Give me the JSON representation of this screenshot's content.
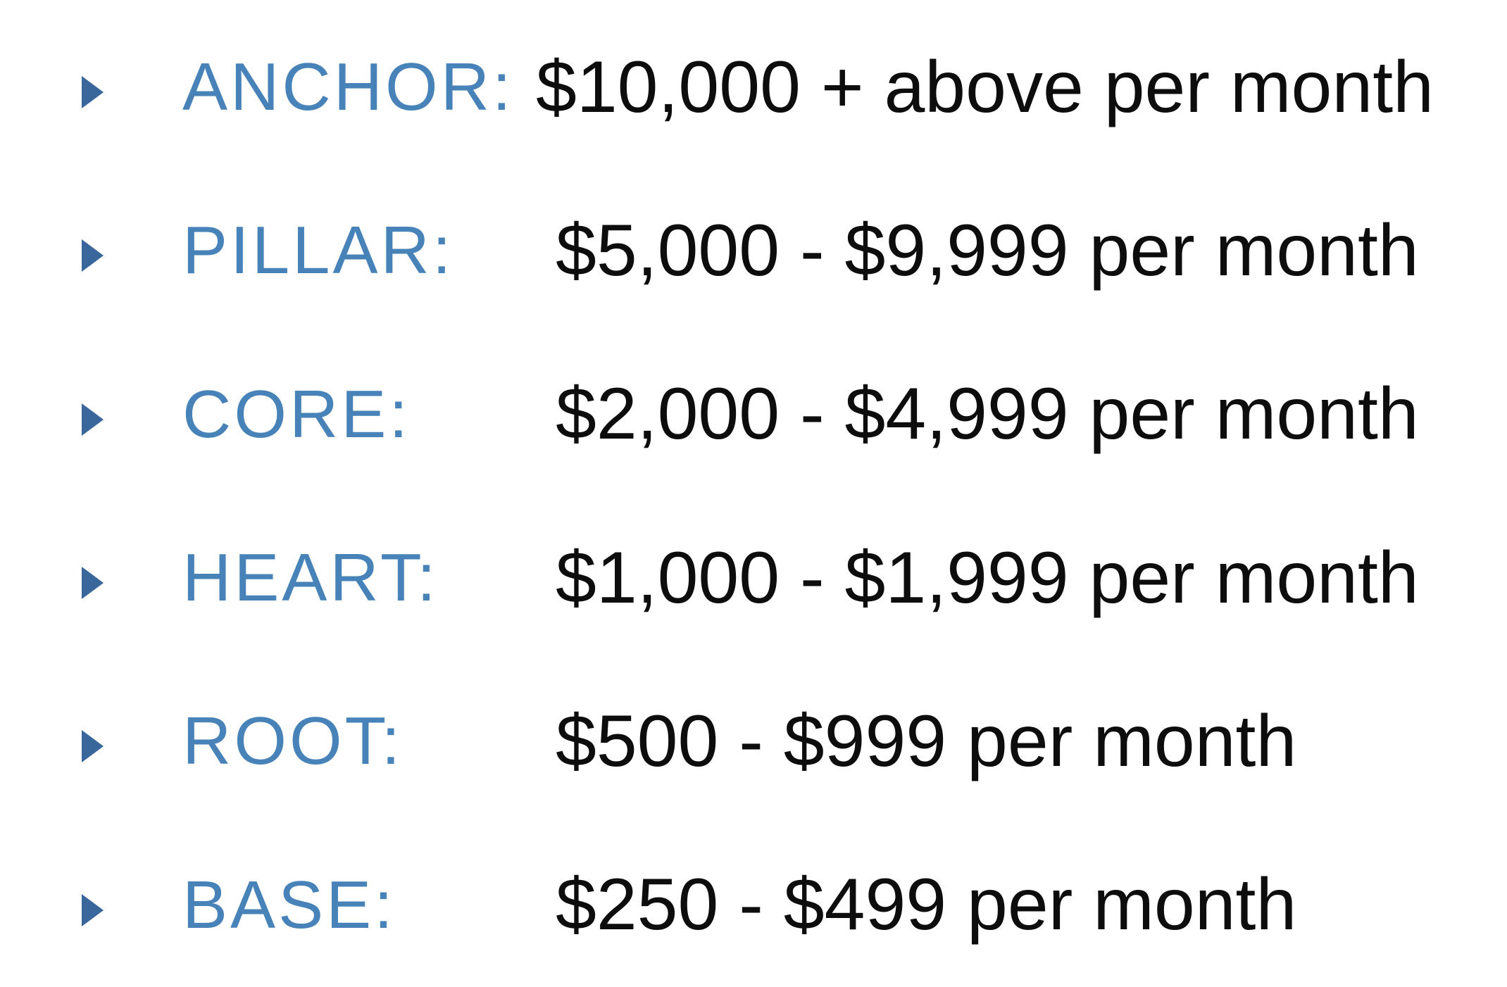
{
  "colors": {
    "label-blue": "#4783b8",
    "bullet-blue": "#3a679b",
    "value-black": "#0d0d0d",
    "background": "#ffffff"
  },
  "icons": {
    "bullet": "right-pointing-triangle"
  },
  "tiers": [
    {
      "label": "ANCHOR:",
      "value": "$10,000 + above per month"
    },
    {
      "label": "PILLAR:",
      "value": "$5,000 - $9,999 per month"
    },
    {
      "label": "CORE:",
      "value": "$2,000 - $4,999 per month"
    },
    {
      "label": "HEART:",
      "value": "$1,000 - $1,999 per month"
    },
    {
      "label": "ROOT:",
      "value": "$500 - $999 per month"
    },
    {
      "label": "BASE:",
      "value": "$250 - $499 per month"
    }
  ]
}
